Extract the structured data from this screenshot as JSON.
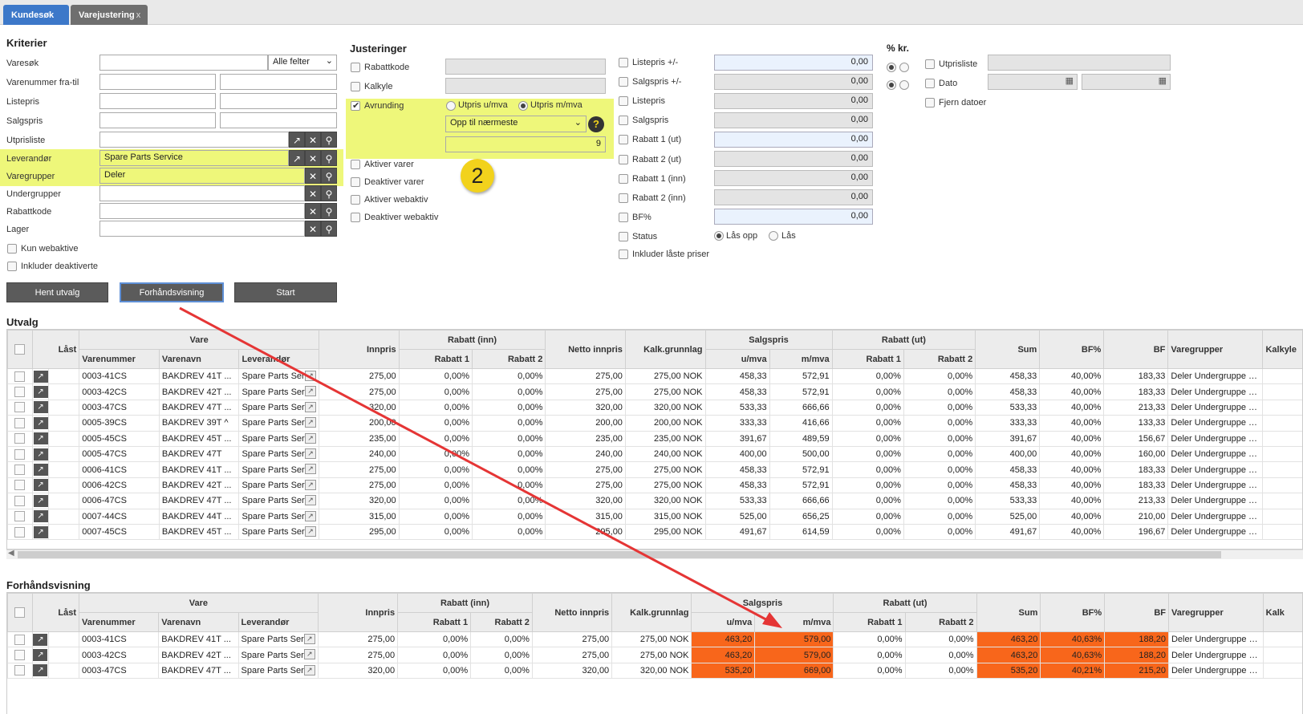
{
  "tabs": [
    {
      "label": "Kundesøk"
    },
    {
      "label": "Varejustering",
      "close": "x"
    }
  ],
  "kriterier": {
    "title": "Kriterier",
    "varesok_label": "Varesøk",
    "varesok_select": "Alle felter",
    "varenummer_label": "Varenummer fra-til",
    "listepris_label": "Listepris",
    "salgspris_label": "Salgspris",
    "utprisliste_label": "Utprisliste",
    "leverandor_label": "Leverandør",
    "leverandor_value": "Spare Parts Service",
    "varegrupper_label": "Varegrupper",
    "varegrupper_value": "Deler",
    "undergrupper_label": "Undergrupper",
    "rabattkode_label": "Rabattkode",
    "lager_label": "Lager",
    "kun_webaktive": "Kun webaktive",
    "inkluder_deaktiverte": "Inkluder deaktiverte"
  },
  "buttons": {
    "hent": "Hent utvalg",
    "forhandsvisning": "Forhåndsvisning",
    "start": "Start"
  },
  "justeringer": {
    "title": "Justeringer",
    "rabattkode": "Rabattkode",
    "kalkyle": "Kalkyle",
    "avrunding": "Avrunding",
    "utpris_umva": "Utpris u/mva",
    "utpris_mmva": "Utpris m/mva",
    "avrunding_select": "Opp til nærmeste",
    "avrunding_value": "9",
    "help": "?",
    "aktiver_varer": "Aktiver varer",
    "deaktiver_varer": "Deaktiver varer",
    "aktiver_webaktiv": "Aktiver webaktiv",
    "deaktiver_webaktiv": "Deaktiver webaktiv",
    "badge": "2"
  },
  "priser": {
    "listepris_pm": "Listepris +/-",
    "salgspris_pm": "Salgspris +/-",
    "listepris": "Listepris",
    "salgspris": "Salgspris",
    "rabatt1_ut": "Rabatt 1 (ut)",
    "rabatt2_ut": "Rabatt 2 (ut)",
    "rabatt1_inn": "Rabatt 1 (inn)",
    "rabatt2_inn": "Rabatt 2 (inn)",
    "bf": "BF%",
    "status": "Status",
    "las_opp": "Lås opp",
    "las": "Lås",
    "inkluder_laste": "Inkluder låste priser",
    "v_listepris_pm": "0,00",
    "v_salgspris_pm": "0,00",
    "v_listepris": "0,00",
    "v_salgspris": "0,00",
    "v_rabatt1_ut": "0,00",
    "v_rabatt2_ut": "0,00",
    "v_rabatt1_inn": "0,00",
    "v_rabatt2_inn": "0,00",
    "v_bf": "0,00"
  },
  "prosent": {
    "title": "% kr.",
    "utprisliste": "Utprisliste",
    "dato": "Dato",
    "fjern_datoer": "Fjern datoer"
  },
  "utvalg": {
    "title": "Utvalg",
    "headers": {
      "last": "Låst",
      "vare": "Vare",
      "varenummer": "Varenummer",
      "varenavn": "Varenavn",
      "leverandor": "Leverandør",
      "innpris": "Innpris",
      "rabatt_inn": "Rabatt (inn)",
      "rabatt1": "Rabatt 1",
      "rabatt2": "Rabatt 2",
      "netto": "Netto innpris",
      "kalk": "Kalk.grunnlag",
      "salgspris": "Salgspris",
      "umva": "u/mva",
      "mmva": "m/mva",
      "rabatt_ut": "Rabatt (ut)",
      "sum": "Sum",
      "bfp": "BF%",
      "bf": "BF",
      "varegrupper": "Varegrupper",
      "kalkyle": "Kalkyle"
    },
    "rows": [
      [
        "0003-41CS",
        "BAKDREV 41T ...",
        "Spare Parts Ser",
        "275,00",
        "0,00%",
        "0,00%",
        "275,00",
        "275,00 NOK",
        "458,33",
        "572,91",
        "0,00%",
        "0,00%",
        "458,33",
        "40,00%",
        "183,33",
        "Deler Undergruppe 1..."
      ],
      [
        "0003-42CS",
        "BAKDREV 42T ...",
        "Spare Parts Ser",
        "275,00",
        "0,00%",
        "0,00%",
        "275,00",
        "275,00 NOK",
        "458,33",
        "572,91",
        "0,00%",
        "0,00%",
        "458,33",
        "40,00%",
        "183,33",
        "Deler Undergruppe 1..."
      ],
      [
        "0003-47CS",
        "BAKDREV 47T ...",
        "Spare Parts Ser",
        "320,00",
        "0,00%",
        "0,00%",
        "320,00",
        "320,00 NOK",
        "533,33",
        "666,66",
        "0,00%",
        "0,00%",
        "533,33",
        "40,00%",
        "213,33",
        "Deler Undergruppe 1..."
      ],
      [
        "0005-39CS",
        "BAKDREV 39T ^",
        "Spare Parts Ser",
        "200,00",
        "0,00%",
        "0,00%",
        "200,00",
        "200,00 NOK",
        "333,33",
        "416,66",
        "0,00%",
        "0,00%",
        "333,33",
        "40,00%",
        "133,33",
        "Deler Undergruppe 1..."
      ],
      [
        "0005-45CS",
        "BAKDREV 45T ...",
        "Spare Parts Ser",
        "235,00",
        "0,00%",
        "0,00%",
        "235,00",
        "235,00 NOK",
        "391,67",
        "489,59",
        "0,00%",
        "0,00%",
        "391,67",
        "40,00%",
        "156,67",
        "Deler Undergruppe 1..."
      ],
      [
        "0005-47CS",
        "BAKDREV 47T",
        "Spare Parts Ser",
        "240,00",
        "0,00%",
        "0,00%",
        "240,00",
        "240,00 NOK",
        "400,00",
        "500,00",
        "0,00%",
        "0,00%",
        "400,00",
        "40,00%",
        "160,00",
        "Deler Undergruppe 1..."
      ],
      [
        "0006-41CS",
        "BAKDREV 41T ...",
        "Spare Parts Ser",
        "275,00",
        "0,00%",
        "0,00%",
        "275,00",
        "275,00 NOK",
        "458,33",
        "572,91",
        "0,00%",
        "0,00%",
        "458,33",
        "40,00%",
        "183,33",
        "Deler Undergruppe 1..."
      ],
      [
        "0006-42CS",
        "BAKDREV 42T ...",
        "Spare Parts Ser",
        "275,00",
        "0,00%",
        "0,00%",
        "275,00",
        "275,00 NOK",
        "458,33",
        "572,91",
        "0,00%",
        "0,00%",
        "458,33",
        "40,00%",
        "183,33",
        "Deler Undergruppe 1..."
      ],
      [
        "0006-47CS",
        "BAKDREV 47T ...",
        "Spare Parts Ser",
        "320,00",
        "0,00%",
        "0,00%",
        "320,00",
        "320,00 NOK",
        "533,33",
        "666,66",
        "0,00%",
        "0,00%",
        "533,33",
        "40,00%",
        "213,33",
        "Deler Undergruppe 1..."
      ],
      [
        "0007-44CS",
        "BAKDREV 44T ...",
        "Spare Parts Ser",
        "315,00",
        "0,00%",
        "0,00%",
        "315,00",
        "315,00 NOK",
        "525,00",
        "656,25",
        "0,00%",
        "0,00%",
        "525,00",
        "40,00%",
        "210,00",
        "Deler Undergruppe 1..."
      ],
      [
        "0007-45CS",
        "BAKDREV 45T ...",
        "Spare Parts Ser",
        "295,00",
        "0,00%",
        "0,00%",
        "295,00",
        "295,00 NOK",
        "491,67",
        "614,59",
        "0,00%",
        "0,00%",
        "491,67",
        "40,00%",
        "196,67",
        "Deler Undergruppe 1..."
      ]
    ]
  },
  "forhandsvisning": {
    "title": "Forhåndsvisning",
    "rows": [
      [
        "0003-41CS",
        "BAKDREV 41T ...",
        "Spare Parts Ser",
        "275,00",
        "0,00%",
        "0,00%",
        "275,00",
        "275,00 NOK",
        "463,20",
        "579,00",
        "0,00%",
        "0,00%",
        "463,20",
        "40,63%",
        "188,20",
        "Deler Undergruppe 1..."
      ],
      [
        "0003-42CS",
        "BAKDREV 42T ...",
        "Spare Parts Ser",
        "275,00",
        "0,00%",
        "0,00%",
        "275,00",
        "275,00 NOK",
        "463,20",
        "579,00",
        "0,00%",
        "0,00%",
        "463,20",
        "40,63%",
        "188,20",
        "Deler Undergruppe 1..."
      ],
      [
        "0003-47CS",
        "BAKDREV 47T ...",
        "Spare Parts Ser",
        "320,00",
        "0,00%",
        "0,00%",
        "320,00",
        "320,00 NOK",
        "535,20",
        "669,00",
        "0,00%",
        "0,00%",
        "535,20",
        "40,21%",
        "215,20",
        "Deler Undergruppe 1..."
      ]
    ],
    "kalk_short": "Kalk"
  },
  "colors": {
    "highlight": "#eef77a",
    "changed": "#f8661b",
    "arrow": "#e53535",
    "tab_active": "#3c78c9"
  },
  "icons": {
    "arrow_btn": "↗",
    "clear": "✕",
    "search": "⚲",
    "calendar": "▦",
    "dropdown": "⌄"
  }
}
